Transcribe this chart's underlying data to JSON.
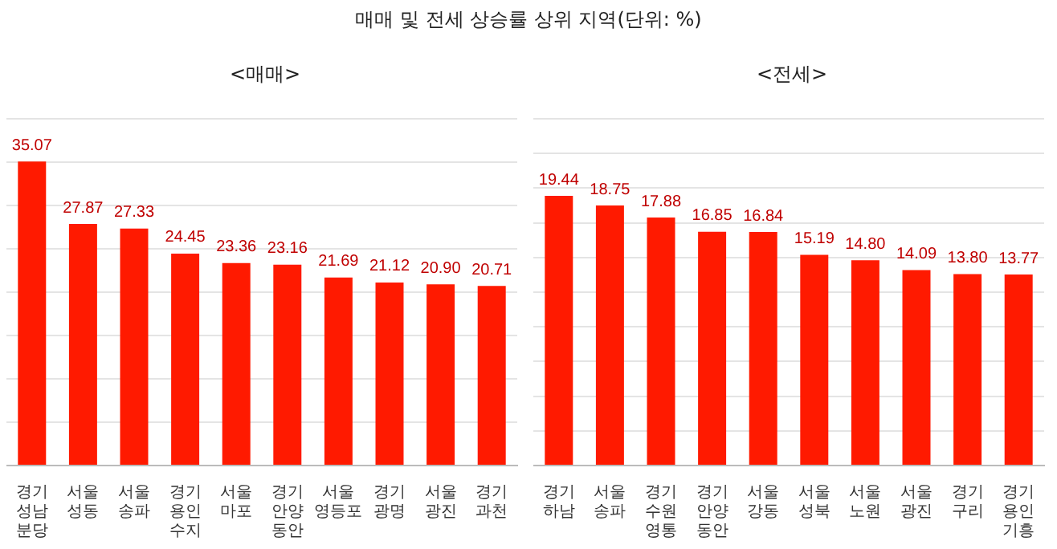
{
  "chart_data": [
    {
      "type": "bar",
      "title": "매매 및 전세 상승률 상위 지역(단위: %)",
      "subtitle": "<매매>",
      "categories": [
        "경기 성남 분당",
        "서울 성동",
        "서울 송파",
        "경기 용인 수지",
        "서울 마포",
        "경기 안양 동안",
        "서울 영등포",
        "경기 광명",
        "서울 광진",
        "경기 과천"
      ],
      "values": [
        35.07,
        27.87,
        27.33,
        24.45,
        23.36,
        23.16,
        21.69,
        21.12,
        20.9,
        20.71
      ],
      "value_labels": [
        "35.07",
        "27.87",
        "27.33",
        "24.45",
        "23.36",
        "23.16",
        "21.69",
        "21.12",
        "20.90",
        "20.71"
      ],
      "color": "#ff1a00",
      "ylim": [
        0,
        40
      ],
      "yticks": [
        {
          "value": 0,
          "label": null
        },
        {
          "value": 5,
          "label": null
        },
        {
          "value": 10,
          "label": null
        },
        {
          "value": 15,
          "label": null
        },
        {
          "value": 20,
          "label": null
        },
        {
          "value": 25,
          "label": null
        },
        {
          "value": 30,
          "label": null
        },
        {
          "value": 35,
          "label": null
        },
        {
          "value": 40,
          "label": null
        }
      ],
      "grid": "y",
      "tick_labels": "x",
      "legend": false
    },
    {
      "type": "bar",
      "title": "<전세>",
      "categories": [
        "경기 하남",
        "서울 송파",
        "경기 수원 영통",
        "경기 안양 동안",
        "서울 강동",
        "서울 성북",
        "서울 노원",
        "서울 광진",
        "경기 구리",
        "경기 용인 기흥"
      ],
      "values": [
        19.44,
        18.75,
        17.88,
        16.85,
        16.84,
        15.19,
        14.8,
        14.09,
        13.8,
        13.77
      ],
      "value_labels": [
        "19.44",
        "18.75",
        "17.88",
        "16.85",
        "16.84",
        "15.19",
        "14.80",
        "14.09",
        "13.80",
        "13.77"
      ],
      "color": "#ff1a00",
      "ylim": [
        0,
        25
      ],
      "yticks": [
        {
          "value": 0,
          "label": null
        },
        {
          "value": 2.5,
          "label": null
        },
        {
          "value": 5,
          "label": null
        },
        {
          "value": 7.5,
          "label": null
        },
        {
          "value": 10,
          "label": null
        },
        {
          "value": 12.5,
          "label": null
        },
        {
          "value": 15,
          "label": null
        },
        {
          "value": 17.5,
          "label": null
        },
        {
          "value": 20,
          "label": null
        },
        {
          "value": 22.5,
          "label": null
        },
        {
          "value": 25,
          "label": null
        }
      ],
      "grid": "y",
      "tick_labels": "x",
      "legend": false
    }
  ]
}
